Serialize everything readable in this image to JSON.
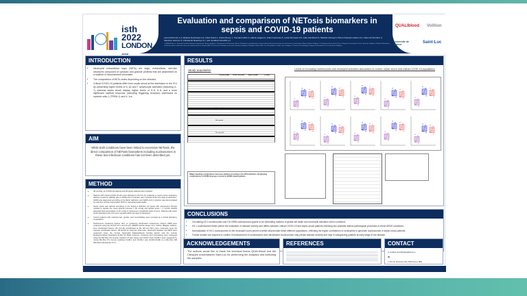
{
  "header": {
    "congress": {
      "brand": "isth",
      "year": "2022",
      "city": "LONDON",
      "dates": "JULY 9-13"
    },
    "title": "Evaluation and comparison of NETosis biomarkers in sepsis and COVID-19 patients",
    "authors": "Laure Morimont 1,2, Mélanie Dechamps 3,4, Clara David 1, Céline Bouvy 1, Constant Gillot 2, Hélène Haguet 2, Julien Favresse 5, Lorian Ronvaux 2,5, Julie Candiracci 6, Marielle Herzog 6, Pierre-François Laterre 3,4, Julien de Poortere 3, Sandrine Horman 4, Christophe Beauloye 4,7, and Jonathan Douxfils 1,2",
    "affiliations": "1 QUALIblood s.a., Research and Development Department, Namur, Belgium; 2 Department of Pharmacy, Namur Thrombosis and Hemostasis Center, Namur Research Institute for Life Sciences, University of Namur, Namur, Belgium; 3 Cardiovascular Intensive Care, Cliniques Universitaires St-Luc, Brussels, Belgium; 4 Pôle de Recherche Cardiovasculaire, Institut de recherche expérimentale et clinique (IREC), Université Catholique de Louvain, Brussels, Belgium; 6 Belgian Volition SRL, Parc Scientifique Créalys, Isnes, Belgium; 7 Division of Cardiology, Cliniques Universitaires St-Luc, Brussels, Belgium",
    "logos": [
      "QUALIblood",
      "Volition",
      "Université de Namur",
      "Saint-Luc"
    ]
  },
  "introduction": {
    "heading": "INTRODUCTION",
    "bullets": [
      "Neutrophil extracellular traps (NETs) are large, extracellular, web-like structures composed of cytosolic and granule proteins that are assembled on a scaffold of decondensed chromatin.",
      "The composition of NETs varies depending on the stimulus.",
      "Critical COVID-19 patients differ from septic shock at the admission in the ICU by presenting higher levels of IL-1β and T lymphocyte activation (including IL-7) whereas septic shock display higher levels of IL-6, IL-8, and a more significant myeloid response (including triggering receptors expressed on myeloid cells-1 (TREM-1) and IL-1ra."
    ]
  },
  "aim": {
    "heading": "AIM",
    "text": "While both conditions have been linked to excessive NETosis, the direct comparison of NETosis biomarkers including nucleosomes in these two infectious conditions has not been described yet."
  },
  "method": {
    "heading": "METHOD",
    "bullets": [
      "48 controls, 22 COVID-19 patients and 48 sepsis patients were included.",
      "Patients with critical COVID-19 who were admitted to the ICU for moderate or severe acute respiratory distress syndrome (ARDS) due to SARS-CoV-2 infection were included within five days of admission. ARDS was diagnosed according to the Berlin definition, and SARS-CoV-2 infection was demonstrated by real-time reverse transcription PCR on nasopharyngeal swabs.",
      "Septic shock was defined according to the Sepsis-3 definition as sepsis with vasopressor therapy needed to elevate the mean arterial pressure ≥ 65 mmHg and lactate levels > 2 mmol/L despite adequate fluid resuscitation of 30 mL/kg of intravenous crystalloids within 6 hours. Patients with septic shock admitted to the ICU were included within two days of admission.",
      "Control patients with matched age, gender, and comorbidities were recruited at a central laboratory consultation.",
      "Nucleosome containing histone H3.1 or containing citrullinated nucleosome histone H3R8 were measured using the Nu.Q® H3.1 and Nu.Q® H3R8Cit ELISA assays from Volition (Belgian Volition). Free citrullinated histone H3 (Cit-H3) (citrullinated at R2, R8 and R17) were measured using the Cayman citrullinated histone H3 ELISA kit (Cayman Chemical). Neutrophil elastase and MPO were measured using the Human Neutrophil Elastase/ELA2 DuoSet ELISA and the Human Myeloperoxidase Quantikine ELISA Kit (R&D systems). Cytokines and chemokines were measured using the Bio-Plex Pro Human Cytokine 27-plex Assay and ICAM-1 and VCAM-1 were measured by mixing Bio-Plex Pro human cytokines ICAM-1 and VCAM-1 sets (ICAM-VCAM) on a Bio-Plex 200 (Bio-Rad Laboratories N.V.)."
    ]
  },
  "results": {
    "heading": "RESULTS",
    "study_population": {
      "subtitle": "Study population",
      "columns": [
        "",
        "Control (n=48)",
        "COVID-19 (n=22)",
        "Sepsis (n=48)",
        "p-value"
      ],
      "row_cells": [
        "Not applicable",
        "Not reported",
        "Not applicable"
      ]
    },
    "levels_subtitle": "Levels of circulating nucleosomes and neutrophil activation biomarkers in control, septic shock and critical COVID-19 populations",
    "footnote_title": "#Major bleeding complications have been defined according to the ISTH definition. All bleeding complications in COVID-19 group occurred in ECMO-treated patients."
  },
  "conclusions": {
    "heading": "CONCLUSIONS",
    "bullets": [
      "Circulating H3.1-nucleosomes and Cit-H3R8-nucleosomes appear to be interesting markers of global cell death and neutrophil activation when combined.",
      "H3.1-nucleosomes levels permit the evaluation of disease severity and differs between critical COVID-19 and septic shock patients reflecting two potential distinct pathological processes in these ARDS conditions.",
      "Normalization of H3.1-nucleosomes on the neutrophil count permit to better discriminate these different populations, reflecting the higher contribution of neutrophils to generate nucleosomes in septic shock patients.",
      "Further studies are required to confirm if measurement of nucleosomes and citrullinated nucleosomes may predict disease severity and help in categorizing patients at early stage of the disease."
    ]
  },
  "acknowledgements": {
    "heading": "ACKNOWLEDGEMENTS",
    "text": "The authors would like to thank the technical teams QUALIblood and the Cliniques Universitaires Saint-Luc for performing the analyses and collecting the samples."
  },
  "references": {
    "heading": "REFERENCES"
  },
  "contact": {
    "heading": "CONTACT",
    "email": "jonathan.douxfils@qualiblood.eu",
    "address": "Rue du Séminaire 20a, 5000 Namur (BE)"
  },
  "colors": {
    "navy": "#0c2d5e",
    "teal": "#4aa3a6",
    "control": "#b06fc0",
    "sepsis": "#3b3fd8",
    "covid": "#e8706a"
  }
}
